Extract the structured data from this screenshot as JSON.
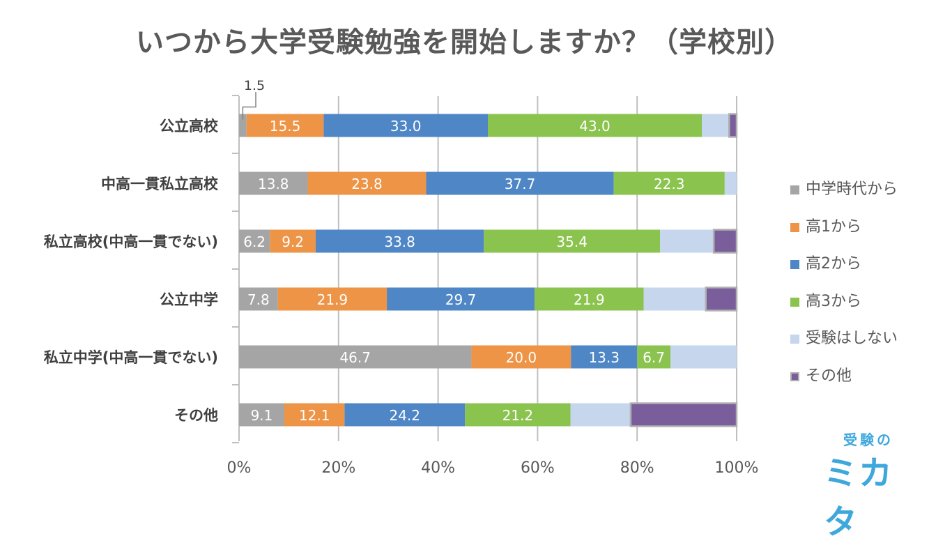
{
  "chart_data": {
    "type": "bar",
    "orientation": "horizontal",
    "stacked": "percent",
    "title": "いつから大学受験勉強を開始しますか？（学校別）",
    "categories": [
      "公立高校",
      "中高一貫私立高校",
      "私立高校(中高一貫でない)",
      "公立中学",
      "私立中学(中高一貫でない)",
      "その他"
    ],
    "series": [
      {
        "name": "中学時代から",
        "color": "#a5a5a5",
        "values": [
          1.5,
          13.8,
          6.2,
          7.8,
          46.7,
          9.1
        ],
        "labels": [
          "1.5",
          "13.8",
          "6.2",
          "7.8",
          "46.7",
          "9.1"
        ]
      },
      {
        "name": "高1から",
        "color": "#ed9447",
        "values": [
          15.5,
          23.8,
          9.2,
          21.9,
          20.0,
          12.1
        ],
        "labels": [
          "15.5",
          "23.8",
          "9.2",
          "21.9",
          "20.0",
          "12.1"
        ]
      },
      {
        "name": "高2から",
        "color": "#4e86c6",
        "values": [
          33.0,
          37.7,
          33.8,
          29.7,
          13.3,
          24.2
        ],
        "labels": [
          "33.0",
          "37.7",
          "33.8",
          "29.7",
          "13.3",
          "24.2"
        ]
      },
      {
        "name": "高3から",
        "color": "#8bc34f",
        "values": [
          43.0,
          22.3,
          35.4,
          21.9,
          6.7,
          21.2
        ],
        "labels": [
          "43.0",
          "22.3",
          "35.4",
          "21.9",
          "6.7",
          "21.2"
        ]
      },
      {
        "name": "受験はしない",
        "color": "#c5d6ed",
        "values": [
          5.5,
          2.4,
          10.8,
          12.5,
          13.3,
          12.1
        ],
        "labels": [
          "",
          "",
          "",
          "",
          "",
          ""
        ]
      },
      {
        "name": "その他",
        "color": "#7a5e9b",
        "values": [
          1.5,
          0,
          4.6,
          6.2,
          0,
          21.3
        ],
        "labels": [
          "",
          "",
          "",
          "",
          "",
          ""
        ]
      }
    ],
    "xlim": [
      0,
      100
    ],
    "xticks": [
      "0%",
      "20%",
      "40%",
      "60%",
      "80%",
      "100%"
    ],
    "grid": "vertical",
    "legend_position": "right",
    "callout": "1.5"
  },
  "logo": {
    "line1": "受験の",
    "line2": "ミカタ"
  }
}
